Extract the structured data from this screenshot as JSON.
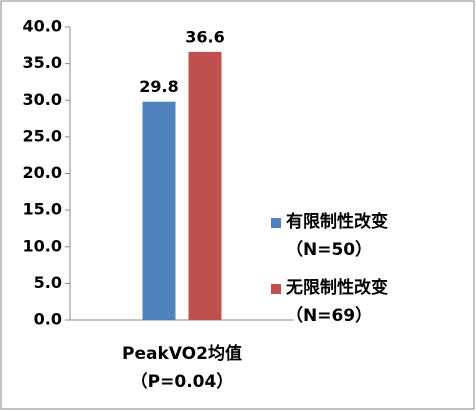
{
  "chart_data": {
    "type": "bar",
    "categories": [
      "PeakVO2均值（P=0.04）"
    ],
    "series": [
      {
        "name": "有限制性改变（N=50）",
        "color": "#4f81bd",
        "values": [
          29.8
        ]
      },
      {
        "name": "无限制性改变（N=69）",
        "color": "#c0504d",
        "values": [
          36.6
        ]
      }
    ],
    "ylim": [
      0,
      40
    ],
    "yticks": [
      {
        "value": 0,
        "label": "0.0"
      },
      {
        "value": 5,
        "label": "5.0"
      },
      {
        "value": 10,
        "label": "10.0"
      },
      {
        "value": 15,
        "label": "15.0"
      },
      {
        "value": 20,
        "label": "20.0"
      },
      {
        "value": 25,
        "label": "25.0"
      },
      {
        "value": 30,
        "label": "30.0"
      },
      {
        "value": 35,
        "label": "35.0"
      },
      {
        "value": 40,
        "label": "40.0"
      }
    ],
    "legend": "right",
    "grid": false
  }
}
